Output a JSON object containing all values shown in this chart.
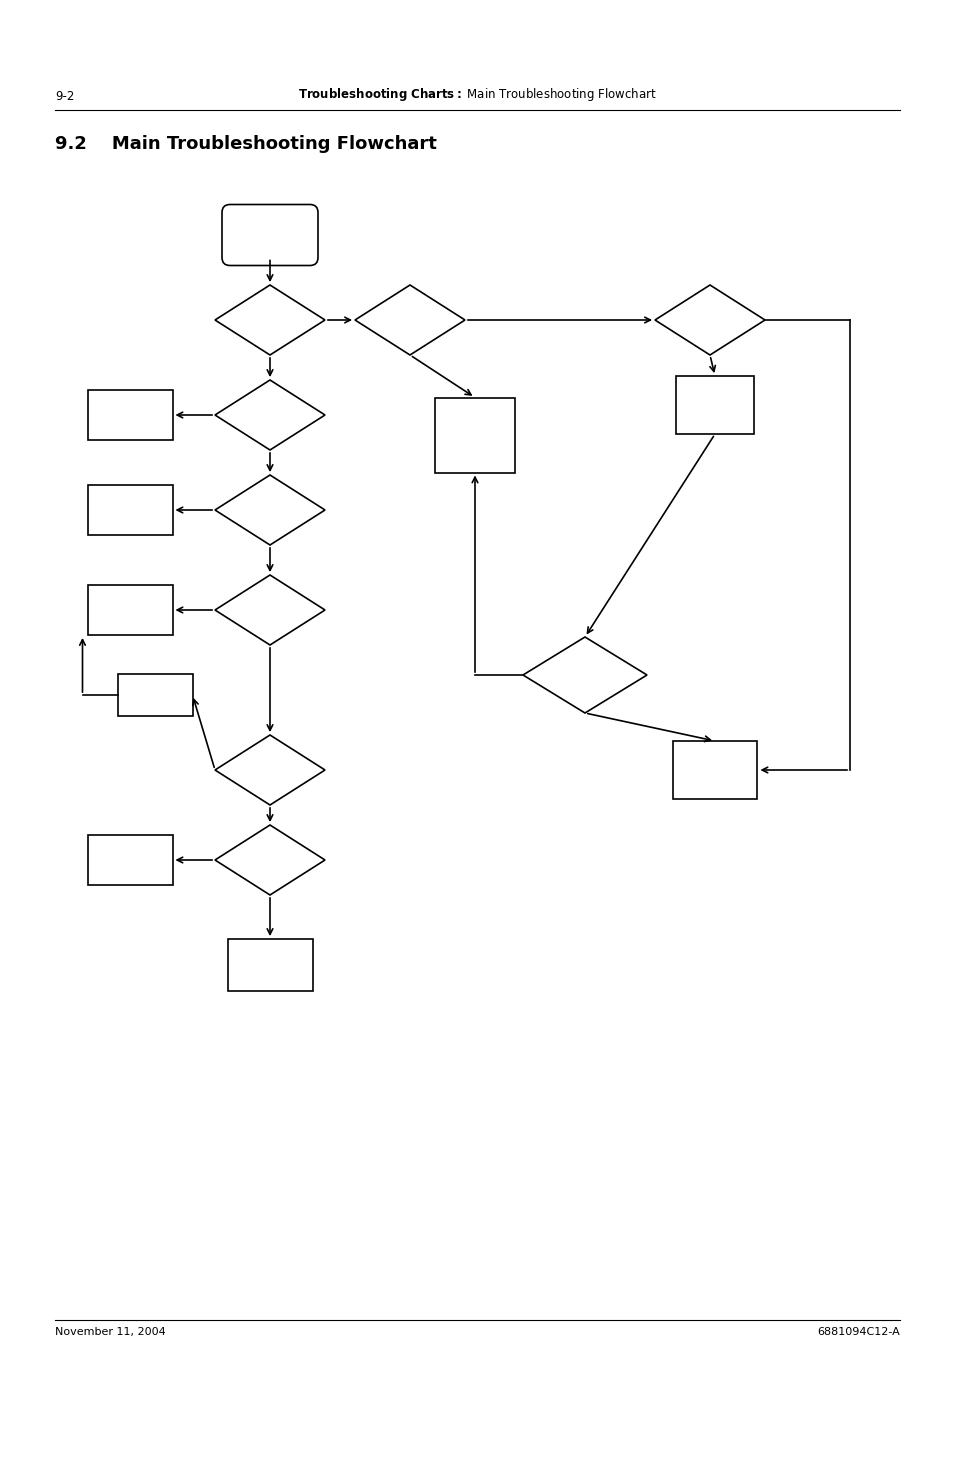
{
  "title": "9.2    Main Troubleshooting Flowchart",
  "header_left": "9-2",
  "header_center": "Troubleshooting Charts: Main Troubleshooting Flowchart",
  "footer_left": "November 11, 2004",
  "footer_right": "6881094C12-A",
  "background_color": "#ffffff",
  "shape_color": "#000000",
  "line_color": "#000000"
}
